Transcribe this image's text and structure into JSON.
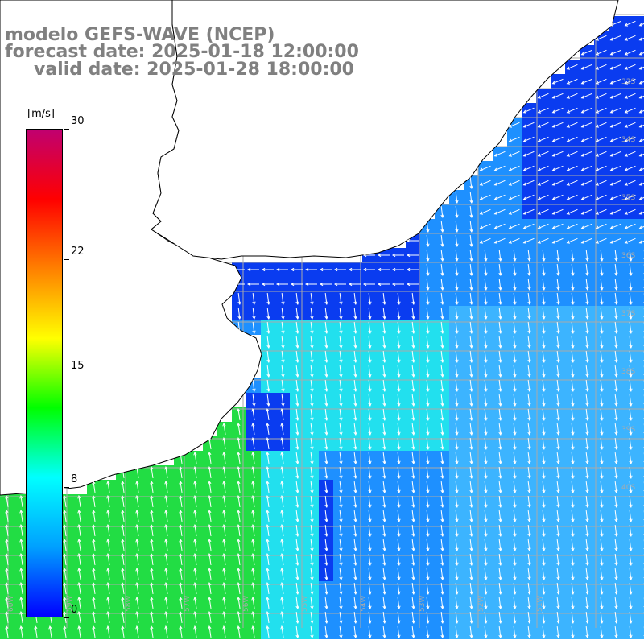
{
  "title": {
    "line1": "modelo GEFS-WAVE (NCEP)",
    "line2": "forecast date: 2025-01-18 12:00:00",
    "line3": "valid date: 2025-01-28 18:00:00"
  },
  "colorbar": {
    "unit": "[m/s]",
    "ticks": [
      {
        "value": 30,
        "label": "30"
      },
      {
        "value": 22,
        "label": "22"
      },
      {
        "value": 15,
        "label": "15"
      },
      {
        "value": 8,
        "label": "8"
      },
      {
        "value": 0,
        "label": "0"
      }
    ],
    "range": [
      0,
      30
    ],
    "colors": [
      "#0000ff",
      "#00a0ff",
      "#00ffff",
      "#00ff00",
      "#ffff00",
      "#ff8000",
      "#ff0000",
      "#c00070"
    ]
  },
  "map": {
    "lat_labels": [
      "33S",
      "34S",
      "35S",
      "36S",
      "37S",
      "38S",
      "39S",
      "40S"
    ],
    "lon_labels": [
      "60W",
      "59W",
      "58W",
      "57W",
      "56W",
      "55W",
      "54W",
      "53W",
      "52W",
      "51W"
    ],
    "colors": {
      "deep_blue": "#0a3cf0",
      "mid_blue": "#1e90ff",
      "light_blue": "#3cb4ff",
      "cyan": "#22e0ee",
      "green": "#22dd44",
      "land": "#ffffff",
      "grid": "#aaaaaa",
      "coast": "#000000",
      "arrow": "#ffffff"
    }
  }
}
